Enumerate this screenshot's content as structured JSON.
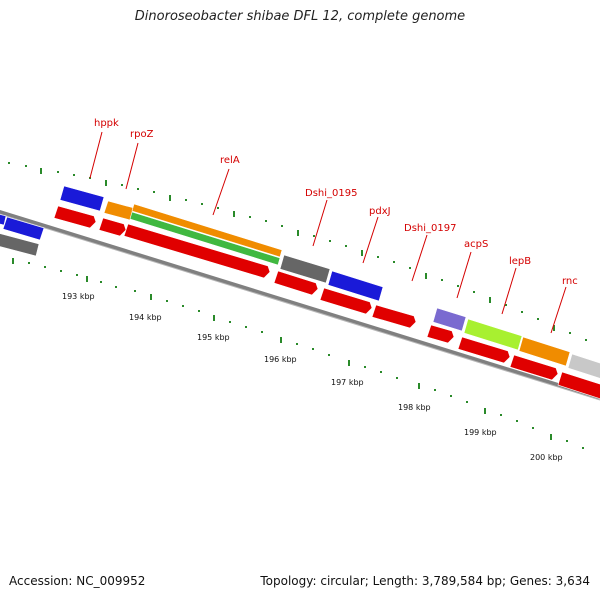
{
  "title": "Dinoroseobacter shibae DFL 12, complete genome",
  "footer": {
    "accession": "Accession: NC_009952",
    "summary": "Topology: circular; Length: 3,789,584 bp; Genes: 3,634"
  },
  "colors": {
    "cds_red": "#e00000",
    "backbone": "#808080",
    "tick_green": "#2a8a2a",
    "label_red": "#d40000"
  },
  "kbp_labels": [
    "193 kbp",
    "194 kbp",
    "195 kbp",
    "196 kbp",
    "197 kbp",
    "198 kbp",
    "199 kbp",
    "200 kbp"
  ],
  "genes": [
    {
      "name": "hppk",
      "color": "#1a1ad8"
    },
    {
      "name": "rpoZ",
      "color": "#f08c00"
    },
    {
      "name": "relA",
      "color": "#f08c00"
    },
    {
      "name": "Dshi_0195",
      "color": "#666666"
    },
    {
      "name": "pdxJ",
      "color": "#1a1ad8"
    },
    {
      "name": "Dshi_0197",
      "color": "#1a1ad8"
    },
    {
      "name": "acpS",
      "color": "#7a6ad0"
    },
    {
      "name": "lepB",
      "color": "#a8f030"
    },
    {
      "name": "rnc",
      "color": "#f08c00"
    }
  ],
  "secondary_track_color": "#40b840"
}
